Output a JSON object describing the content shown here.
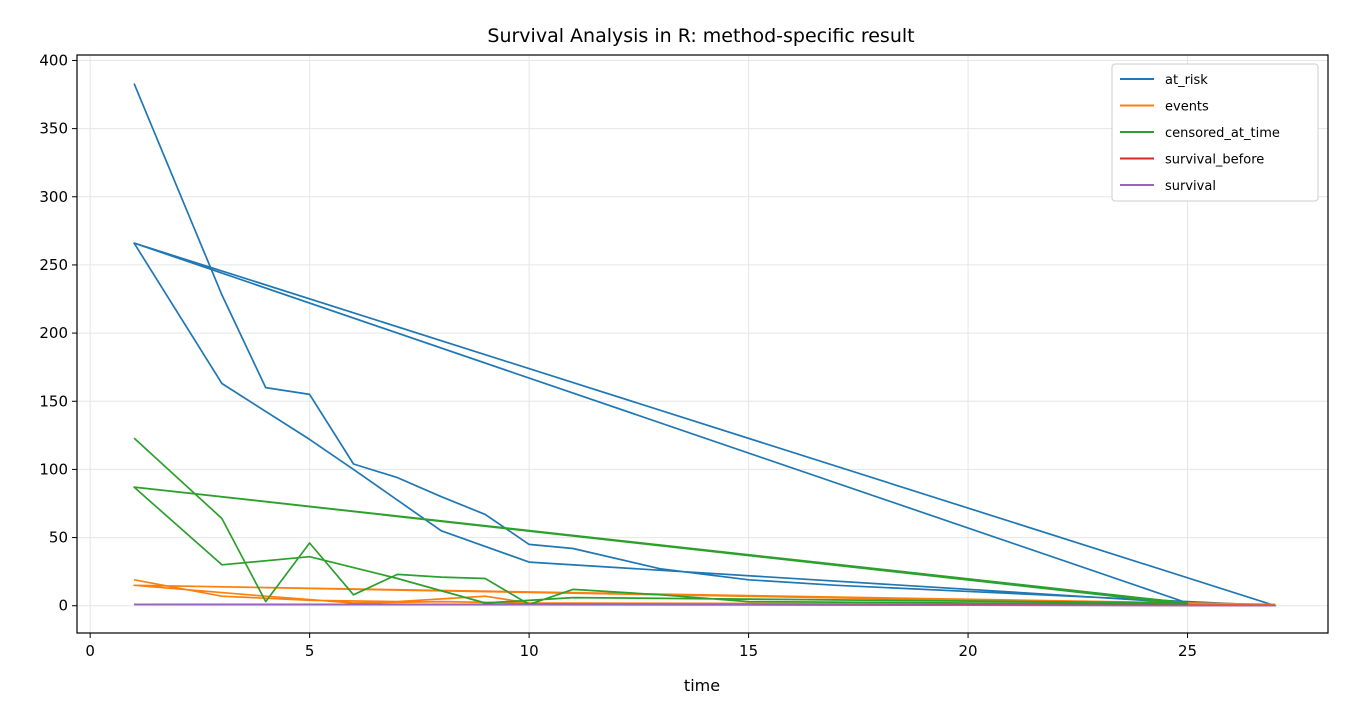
{
  "chart_data": {
    "type": "line",
    "title": "Survival Analysis in R: method-specific result",
    "xlabel": "time",
    "ylabel": "",
    "xlim": [
      -0.3,
      28.2
    ],
    "ylim": [
      -20,
      404
    ],
    "xticks": [
      0,
      5,
      10,
      15,
      20,
      25
    ],
    "yticks": [
      0,
      50,
      100,
      150,
      200,
      250,
      300,
      350,
      400
    ],
    "grid": true,
    "legend_position": "top-right",
    "series": [
      {
        "name": "at_risk",
        "color": "#1f77b4",
        "x": [
          1,
          3,
          4,
          5,
          6,
          7,
          8,
          9,
          10,
          11,
          13,
          15,
          17,
          25,
          27,
          1,
          3,
          5,
          6,
          8,
          10,
          25,
          1,
          25
        ],
        "y": [
          383,
          228,
          160,
          155,
          104,
          94,
          80,
          67,
          45,
          42,
          27,
          19,
          15,
          3,
          0,
          266,
          163,
          122,
          100,
          55,
          32,
          2,
          266,
          2
        ]
      },
      {
        "name": "events",
        "color": "#ff7f0e",
        "x": [
          1,
          3,
          5,
          7,
          9,
          10,
          25,
          27,
          1,
          4,
          6,
          8,
          10,
          27,
          1,
          27
        ],
        "y": [
          19,
          7,
          4,
          3,
          7,
          2,
          1,
          0,
          15,
          7,
          2,
          3,
          2,
          0,
          15,
          1
        ]
      },
      {
        "name": "censored_at_time",
        "color": "#2ca02c",
        "x": [
          1,
          3,
          4,
          5,
          6,
          7,
          8,
          9,
          10,
          11,
          13,
          15,
          25,
          1,
          3,
          5,
          7,
          9,
          11,
          25,
          1,
          25
        ],
        "y": [
          123,
          64,
          3,
          46,
          8,
          23,
          21,
          20,
          1,
          12,
          8,
          3,
          1,
          87,
          30,
          36,
          20,
          2,
          6,
          2,
          87,
          2
        ]
      },
      {
        "name": "survival_before",
        "color": "#d62728",
        "x": [
          1,
          5,
          10,
          15,
          20,
          27
        ],
        "y": [
          1,
          1,
          1,
          0.8,
          0.6,
          0.2
        ]
      },
      {
        "name": "survival",
        "color": "#9467bd",
        "x": [
          1,
          5,
          10,
          15,
          20,
          27
        ],
        "y": [
          1,
          0.9,
          0.8,
          0.6,
          0.4,
          0
        ]
      }
    ]
  }
}
